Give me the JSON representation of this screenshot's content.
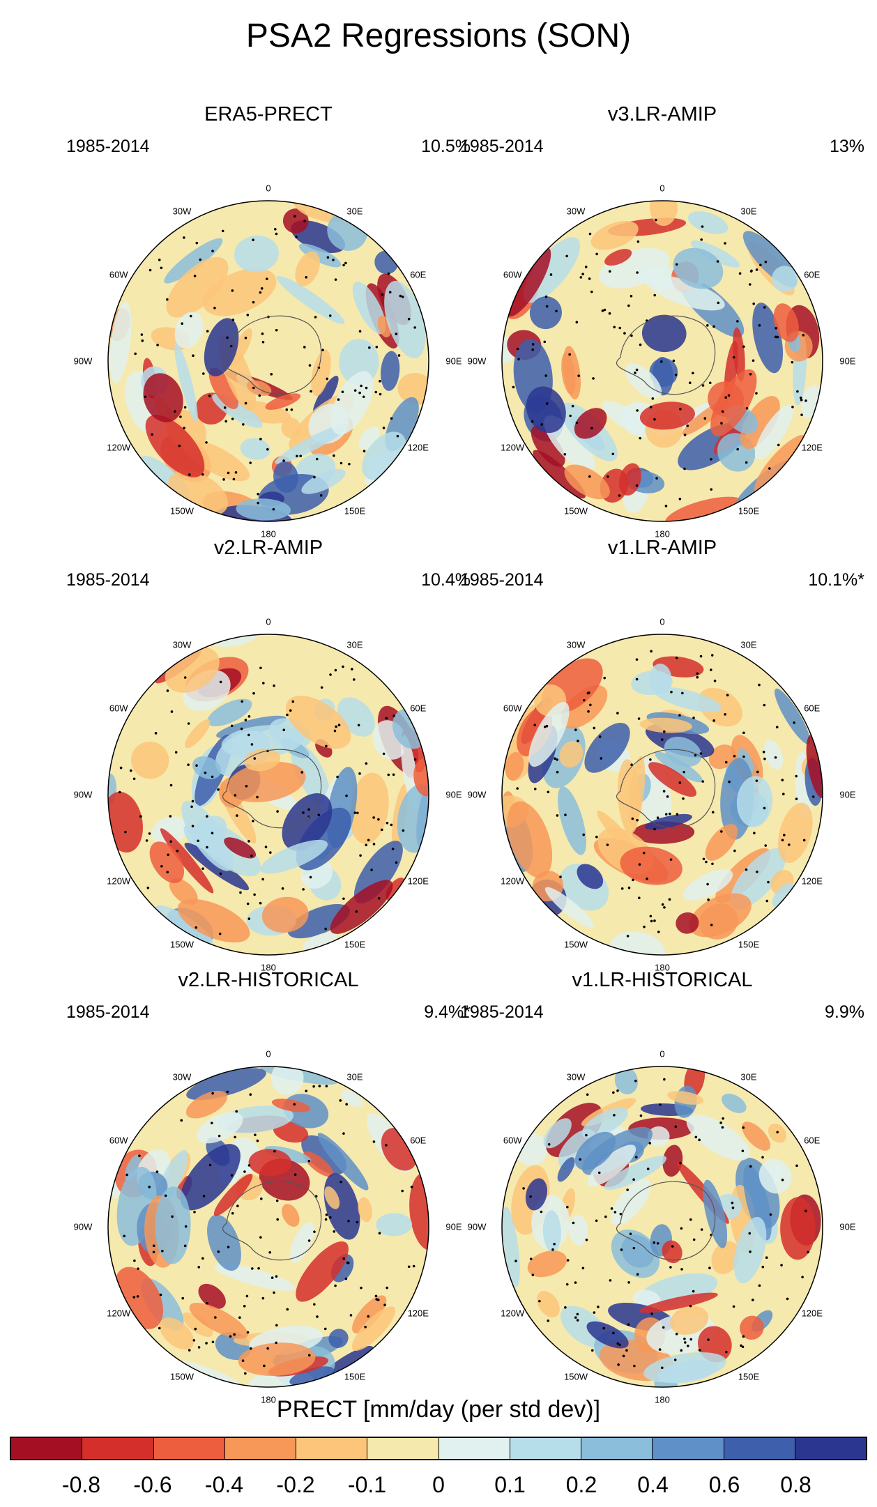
{
  "title": "PSA2 Regressions (SON)",
  "colorbar": {
    "label": "PRECT [mm/day (per std dev)]",
    "colors": [
      "#a50f24",
      "#d52f2c",
      "#ed5e3e",
      "#f79858",
      "#fcc57a",
      "#f6e9ae",
      "#e1f1ef",
      "#b6ddea",
      "#8bbedb",
      "#5f90c7",
      "#3d5fac",
      "#2a3690"
    ],
    "ticks": [
      "-0.8",
      "-0.6",
      "-0.4",
      "-0.2",
      "-0.1",
      "0",
      "0.1",
      "0.2",
      "0.4",
      "0.6",
      "0.8"
    ]
  },
  "map_labels": {
    "lon_0": "0",
    "lon_30e": "30E",
    "lon_60e": "60E",
    "lon_90e": "90E",
    "lon_120e": "120E",
    "lon_150e": "150E",
    "lon_180": "180",
    "lon_150w": "150W",
    "lon_120w": "120W",
    "lon_90w": "90W",
    "lon_60w": "60W",
    "lon_30w": "30W"
  },
  "panels": [
    {
      "title": "ERA5-PRECT",
      "years": "1985-2014",
      "variance": "10.5%"
    },
    {
      "title": "v3.LR-AMIP",
      "years": "1985-2014",
      "variance": "13%"
    },
    {
      "title": "v2.LR-AMIP",
      "years": "1985-2014",
      "variance": "10.4%"
    },
    {
      "title": "v1.LR-AMIP",
      "years": "1985-2014",
      "variance": "10.1%*"
    },
    {
      "title": "v2.LR-HISTORICAL",
      "years": "1985-2014",
      "variance": "9.4%*"
    },
    {
      "title": "v1.LR-HISTORICAL",
      "years": "1985-2014",
      "variance": "9.9%"
    }
  ]
}
